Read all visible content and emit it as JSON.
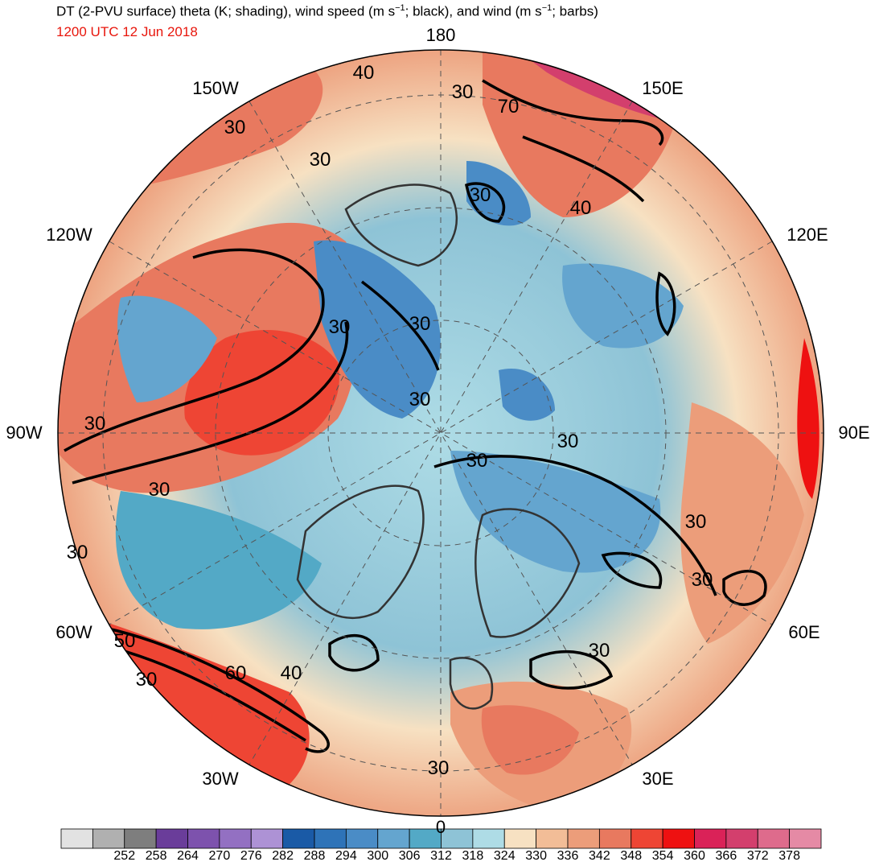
{
  "header": {
    "title_main": "DT (2-PVU surface) theta (K; shading), wind speed (m s",
    "title_sup1": "−1",
    "title_mid": "; black), and wind (m s",
    "title_sup2": "−1",
    "title_end": "; barbs)",
    "valid_time": "1200 UTC 12 Jun 2018"
  },
  "map": {
    "projection": "north polar stereographic",
    "longitude_labels": [
      "180",
      "150E",
      "120E",
      "90E",
      "60E",
      "30E",
      "0",
      "30W",
      "60W",
      "90W",
      "120W",
      "150W"
    ],
    "contour_labels": [
      "40",
      "30",
      "70",
      "30",
      "40",
      "30",
      "30",
      "30",
      "30",
      "30",
      "30",
      "30",
      "30",
      "30",
      "30",
      "30",
      "30",
      "30",
      "30",
      "50",
      "60",
      "40",
      "30"
    ],
    "colors": {
      "land_outline": "#333333",
      "contour": "#000000",
      "grid": "#555555"
    }
  },
  "colorbar": {
    "colors": [
      "#e2e2e2",
      "#b0b0b0",
      "#7e7e7e",
      "#6a3d9a",
      "#7d52ad",
      "#9370c2",
      "#ad92d5",
      "#1a5aa6",
      "#2e73b8",
      "#4a8cc6",
      "#64a5cf",
      "#53a9c6",
      "#8ec3d6",
      "#aedce6",
      "#f7e1c2",
      "#f2bd97",
      "#ec9d7a",
      "#e8795f",
      "#ee4534",
      "#ee1111",
      "#da2258",
      "#d33f6d",
      "#de6b8c",
      "#e58aa5"
    ],
    "tick_labels": [
      "252",
      "258",
      "264",
      "270",
      "276",
      "282",
      "288",
      "294",
      "300",
      "306",
      "312",
      "318",
      "324",
      "330",
      "336",
      "342",
      "348",
      "354",
      "360",
      "366",
      "372",
      "378"
    ]
  }
}
